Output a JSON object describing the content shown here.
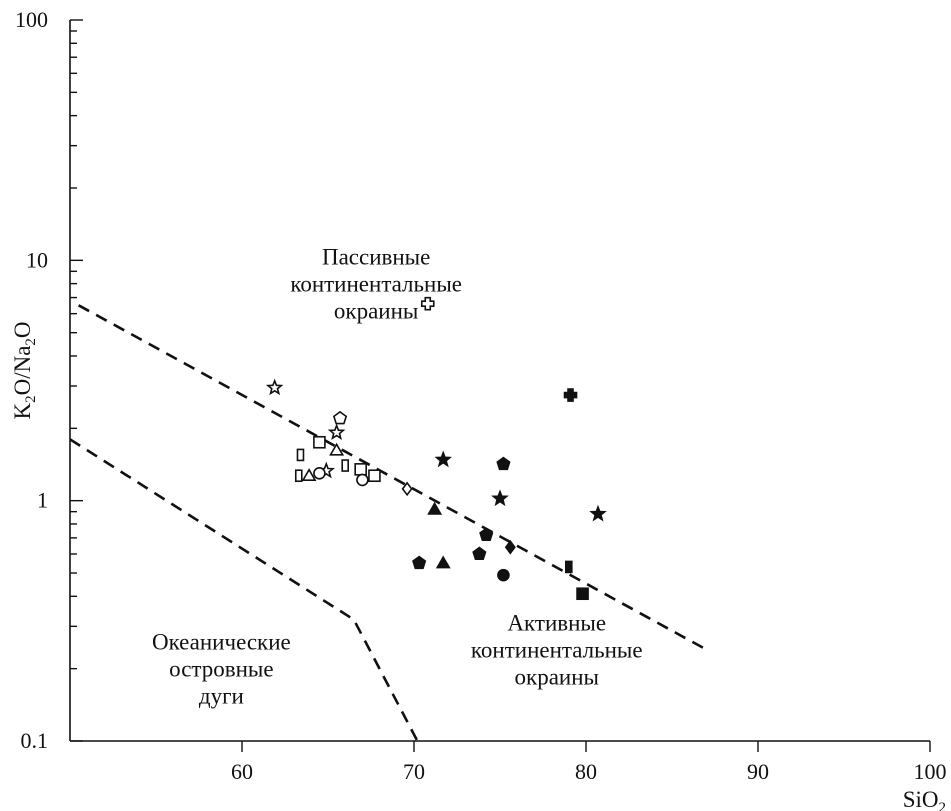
{
  "chart_data": {
    "type": "scatter",
    "xlabel": "SiO2",
    "ylabel": "K2O/Na2O",
    "xlim": [
      50,
      100
    ],
    "ylim": [
      0.1,
      100
    ],
    "yscale": "log",
    "x_ticks": [
      60,
      70,
      80,
      90,
      100
    ],
    "x_tick_labels": [
      "60",
      "70",
      "80",
      "90",
      "100"
    ],
    "y_ticks": [
      0.1,
      1,
      10,
      100
    ],
    "y_tick_labels": [
      "0.1",
      "1",
      "10",
      "100"
    ],
    "grid": false,
    "regions": [
      {
        "label": [
          "Пассивные",
          "континентальные",
          "окраины"
        ],
        "at": [
          67.8,
          8.0
        ]
      },
      {
        "label": [
          "Океанические",
          "островные",
          "дуги"
        ],
        "at": [
          58.8,
          0.2
        ]
      },
      {
        "label": [
          "Активные",
          "континентальные",
          "окраины"
        ],
        "at": [
          78.3,
          0.24
        ]
      }
    ],
    "boundaries": [
      {
        "points": [
          [
            50.5,
            6.5
          ],
          [
            87,
            0.24
          ]
        ]
      },
      {
        "points": [
          [
            50,
            1.8
          ],
          [
            66.5,
            0.32
          ],
          [
            70.2,
            0.1
          ]
        ]
      }
    ],
    "points": [
      {
        "x": 61.9,
        "y": 2.95,
        "marker": "star",
        "filled": false
      },
      {
        "x": 65.5,
        "y": 1.92,
        "marker": "star",
        "filled": false
      },
      {
        "x": 64.9,
        "y": 1.33,
        "marker": "star",
        "filled": false
      },
      {
        "x": 65.7,
        "y": 2.2,
        "marker": "pentagon",
        "filled": false
      },
      {
        "x": 64.5,
        "y": 1.75,
        "marker": "square",
        "filled": false
      },
      {
        "x": 66.9,
        "y": 1.35,
        "marker": "square",
        "filled": false
      },
      {
        "x": 67.7,
        "y": 1.27,
        "marker": "square",
        "filled": false
      },
      {
        "x": 63.4,
        "y": 1.55,
        "marker": "rect",
        "filled": false
      },
      {
        "x": 63.3,
        "y": 1.27,
        "marker": "rect",
        "filled": false
      },
      {
        "x": 66.0,
        "y": 1.4,
        "marker": "rect",
        "filled": false
      },
      {
        "x": 63.9,
        "y": 1.27,
        "marker": "triangle",
        "filled": false
      },
      {
        "x": 65.5,
        "y": 1.62,
        "marker": "triangle",
        "filled": false
      },
      {
        "x": 64.5,
        "y": 1.3,
        "marker": "circle",
        "filled": false
      },
      {
        "x": 67.0,
        "y": 1.22,
        "marker": "circle",
        "filled": false
      },
      {
        "x": 69.6,
        "y": 1.12,
        "marker": "diamond",
        "filled": false
      },
      {
        "x": 70.8,
        "y": 6.6,
        "marker": "cross",
        "filled": false
      },
      {
        "x": 79.1,
        "y": 2.75,
        "marker": "cross",
        "filled": true
      },
      {
        "x": 71.7,
        "y": 1.48,
        "marker": "star",
        "filled": true
      },
      {
        "x": 75.0,
        "y": 1.02,
        "marker": "star",
        "filled": true
      },
      {
        "x": 80.7,
        "y": 0.88,
        "marker": "star",
        "filled": true
      },
      {
        "x": 75.2,
        "y": 1.42,
        "marker": "pentagon",
        "filled": true
      },
      {
        "x": 74.2,
        "y": 0.72,
        "marker": "pentagon",
        "filled": true
      },
      {
        "x": 73.8,
        "y": 0.6,
        "marker": "pentagon",
        "filled": true
      },
      {
        "x": 70.3,
        "y": 0.55,
        "marker": "pentagon",
        "filled": true
      },
      {
        "x": 71.2,
        "y": 0.92,
        "marker": "triangle",
        "filled": true
      },
      {
        "x": 71.7,
        "y": 0.55,
        "marker": "triangle",
        "filled": true
      },
      {
        "x": 75.6,
        "y": 0.64,
        "marker": "diamond",
        "filled": true
      },
      {
        "x": 75.2,
        "y": 0.49,
        "marker": "circle",
        "filled": true
      },
      {
        "x": 79.0,
        "y": 0.53,
        "marker": "rect",
        "filled": true
      },
      {
        "x": 79.8,
        "y": 0.41,
        "marker": "square",
        "filled": true
      }
    ]
  }
}
